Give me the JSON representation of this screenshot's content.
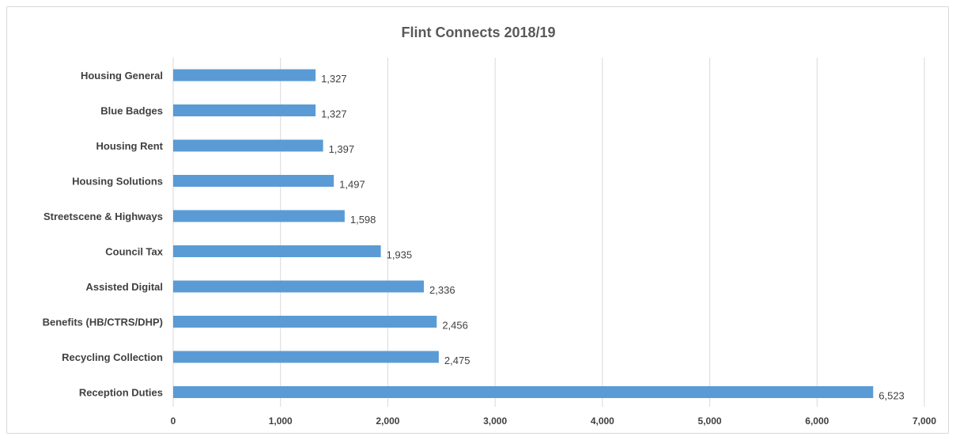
{
  "chart_data": {
    "type": "bar",
    "orientation": "horizontal",
    "title": "Flint Connects 2018/19",
    "xlabel": "",
    "ylabel": "",
    "categories": [
      "Housing General",
      "Blue Badges",
      "Housing Rent",
      "Housing Solutions",
      "Streetscene & Highways",
      "Council Tax",
      "Assisted Digital",
      "Benefits (HB/CTRS/DHP)",
      "Recycling Collection",
      "Reception Duties"
    ],
    "values": [
      1327,
      1327,
      1397,
      1497,
      1598,
      1935,
      2336,
      2456,
      2475,
      6523
    ],
    "value_labels": [
      "1,327",
      "1,327",
      "1,397",
      "1,497",
      "1,598",
      "1,935",
      "2,336",
      "2,456",
      "2,475",
      "6,523"
    ],
    "xlim": [
      0,
      7000
    ],
    "x_ticks": [
      0,
      1000,
      2000,
      3000,
      4000,
      5000,
      6000,
      7000
    ],
    "x_tick_labels": [
      "0",
      "1,000",
      "2,000",
      "3,000",
      "4,000",
      "5,000",
      "6,000",
      "7,000"
    ],
    "grid": true,
    "legend": "none",
    "bar_color": "#5b9bd5",
    "grid_color": "#d9d9d9"
  }
}
